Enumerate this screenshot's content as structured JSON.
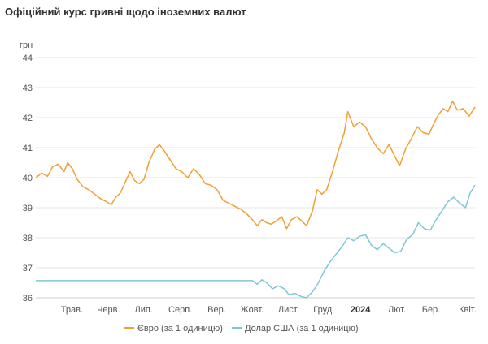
{
  "chart_data": {
    "type": "line",
    "title": "Офіційний курс гривні щодо іноземних валют",
    "ylabel": "грн",
    "xlabel": "",
    "ylim": [
      36,
      44
    ],
    "yticks": [
      "44",
      "43",
      "42",
      "41",
      "40",
      "39",
      "38",
      "37",
      "36"
    ],
    "grid": "horizontal",
    "legend_position": "bottom",
    "xlim": [
      "2023-04-01",
      "2024-04-08"
    ],
    "xticks": [
      {
        "label": "Трав.",
        "date": "2023-05-01",
        "bold": false
      },
      {
        "label": "Черв.",
        "date": "2023-06-01",
        "bold": false
      },
      {
        "label": "Лип.",
        "date": "2023-07-01",
        "bold": false
      },
      {
        "label": "Серп.",
        "date": "2023-08-01",
        "bold": false
      },
      {
        "label": "Вер.",
        "date": "2023-09-01",
        "bold": false
      },
      {
        "label": "Жовт.",
        "date": "2023-10-01",
        "bold": false
      },
      {
        "label": "Лист.",
        "date": "2023-11-01",
        "bold": false
      },
      {
        "label": "Груд.",
        "date": "2023-12-01",
        "bold": false
      },
      {
        "label": "2024",
        "date": "2024-01-01",
        "bold": true
      },
      {
        "label": "Лют.",
        "date": "2024-02-01",
        "bold": false
      },
      {
        "label": "Бер.",
        "date": "2024-03-01",
        "bold": false
      },
      {
        "label": "Квіт.",
        "date": "2024-04-01",
        "bold": false
      }
    ],
    "series": [
      {
        "name": "Євро (за 1 одиницю)",
        "color": "#f0a030",
        "points": [
          [
            "2023-04-01",
            40.0
          ],
          [
            "2023-04-06",
            40.15
          ],
          [
            "2023-04-11",
            40.05
          ],
          [
            "2023-04-15",
            40.35
          ],
          [
            "2023-04-20",
            40.45
          ],
          [
            "2023-04-25",
            40.2
          ],
          [
            "2023-04-28",
            40.5
          ],
          [
            "2023-05-02",
            40.3
          ],
          [
            "2023-05-06",
            39.95
          ],
          [
            "2023-05-11",
            39.7
          ],
          [
            "2023-05-16",
            39.6
          ],
          [
            "2023-05-21",
            39.45
          ],
          [
            "2023-05-26",
            39.3
          ],
          [
            "2023-05-31",
            39.2
          ],
          [
            "2023-06-04",
            39.1
          ],
          [
            "2023-06-08",
            39.35
          ],
          [
            "2023-06-12",
            39.5
          ],
          [
            "2023-06-16",
            39.85
          ],
          [
            "2023-06-20",
            40.2
          ],
          [
            "2023-06-24",
            39.9
          ],
          [
            "2023-06-28",
            39.8
          ],
          [
            "2023-07-02",
            39.95
          ],
          [
            "2023-07-06",
            40.5
          ],
          [
            "2023-07-11",
            40.95
          ],
          [
            "2023-07-15",
            41.1
          ],
          [
            "2023-07-19",
            40.9
          ],
          [
            "2023-07-24",
            40.6
          ],
          [
            "2023-07-29",
            40.3
          ],
          [
            "2023-08-03",
            40.2
          ],
          [
            "2023-08-08",
            40.0
          ],
          [
            "2023-08-13",
            40.3
          ],
          [
            "2023-08-18",
            40.1
          ],
          [
            "2023-08-23",
            39.8
          ],
          [
            "2023-08-28",
            39.75
          ],
          [
            "2023-09-02",
            39.6
          ],
          [
            "2023-09-07",
            39.25
          ],
          [
            "2023-09-12",
            39.15
          ],
          [
            "2023-09-17",
            39.05
          ],
          [
            "2023-09-22",
            38.95
          ],
          [
            "2023-09-27",
            38.8
          ],
          [
            "2023-10-02",
            38.6
          ],
          [
            "2023-10-06",
            38.4
          ],
          [
            "2023-10-10",
            38.6
          ],
          [
            "2023-10-14",
            38.5
          ],
          [
            "2023-10-18",
            38.45
          ],
          [
            "2023-10-22",
            38.55
          ],
          [
            "2023-10-27",
            38.7
          ],
          [
            "2023-10-31",
            38.3
          ],
          [
            "2023-11-04",
            38.6
          ],
          [
            "2023-11-09",
            38.7
          ],
          [
            "2023-11-13",
            38.55
          ],
          [
            "2023-11-17",
            38.4
          ],
          [
            "2023-11-22",
            38.9
          ],
          [
            "2023-11-26",
            39.6
          ],
          [
            "2023-11-30",
            39.45
          ],
          [
            "2023-12-04",
            39.6
          ],
          [
            "2023-12-09",
            40.2
          ],
          [
            "2023-12-14",
            40.9
          ],
          [
            "2023-12-19",
            41.5
          ],
          [
            "2023-12-22",
            42.2
          ],
          [
            "2023-12-27",
            41.7
          ],
          [
            "2024-01-01",
            41.85
          ],
          [
            "2024-01-06",
            41.7
          ],
          [
            "2024-01-11",
            41.3
          ],
          [
            "2024-01-16",
            41.0
          ],
          [
            "2024-01-21",
            40.8
          ],
          [
            "2024-01-26",
            41.1
          ],
          [
            "2024-01-31",
            40.7
          ],
          [
            "2024-02-04",
            40.4
          ],
          [
            "2024-02-09",
            40.95
          ],
          [
            "2024-02-14",
            41.3
          ],
          [
            "2024-02-19",
            41.7
          ],
          [
            "2024-02-24",
            41.5
          ],
          [
            "2024-02-29",
            41.45
          ],
          [
            "2024-03-04",
            41.8
          ],
          [
            "2024-03-08",
            42.1
          ],
          [
            "2024-03-12",
            42.3
          ],
          [
            "2024-03-16",
            42.2
          ],
          [
            "2024-03-20",
            42.55
          ],
          [
            "2024-03-24",
            42.25
          ],
          [
            "2024-03-29",
            42.3
          ],
          [
            "2024-04-03",
            42.05
          ],
          [
            "2024-04-08",
            42.35
          ]
        ]
      },
      {
        "name": "Долар США (за 1 одиницю)",
        "color": "#7ec8d4",
        "points": [
          [
            "2023-04-01",
            36.57
          ],
          [
            "2023-10-02",
            36.57
          ],
          [
            "2023-10-06",
            36.45
          ],
          [
            "2023-10-10",
            36.6
          ],
          [
            "2023-10-14",
            36.5
          ],
          [
            "2023-10-19",
            36.3
          ],
          [
            "2023-10-24",
            36.4
          ],
          [
            "2023-10-29",
            36.3
          ],
          [
            "2023-11-02",
            36.1
          ],
          [
            "2023-11-07",
            36.15
          ],
          [
            "2023-11-12",
            36.05
          ],
          [
            "2023-11-17",
            36.0
          ],
          [
            "2023-11-22",
            36.2
          ],
          [
            "2023-11-27",
            36.5
          ],
          [
            "2023-12-02",
            36.9
          ],
          [
            "2023-12-07",
            37.2
          ],
          [
            "2023-12-12",
            37.45
          ],
          [
            "2023-12-17",
            37.7
          ],
          [
            "2023-12-22",
            38.0
          ],
          [
            "2023-12-27",
            37.9
          ],
          [
            "2024-01-01",
            38.05
          ],
          [
            "2024-01-06",
            38.1
          ],
          [
            "2024-01-11",
            37.75
          ],
          [
            "2024-01-16",
            37.6
          ],
          [
            "2024-01-21",
            37.8
          ],
          [
            "2024-01-26",
            37.65
          ],
          [
            "2024-01-31",
            37.5
          ],
          [
            "2024-02-05",
            37.55
          ],
          [
            "2024-02-10",
            37.95
          ],
          [
            "2024-02-15",
            38.1
          ],
          [
            "2024-02-20",
            38.5
          ],
          [
            "2024-02-25",
            38.3
          ],
          [
            "2024-03-01",
            38.25
          ],
          [
            "2024-03-06",
            38.6
          ],
          [
            "2024-03-11",
            38.9
          ],
          [
            "2024-03-16",
            39.2
          ],
          [
            "2024-03-21",
            39.35
          ],
          [
            "2024-03-26",
            39.15
          ],
          [
            "2024-03-31",
            39.0
          ],
          [
            "2024-04-04",
            39.5
          ],
          [
            "2024-04-08",
            39.75
          ]
        ]
      }
    ]
  }
}
